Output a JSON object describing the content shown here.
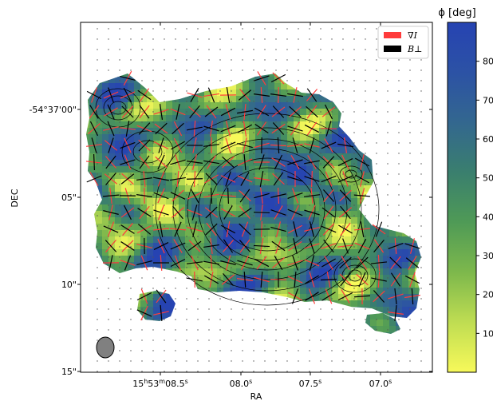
{
  "chart_data": {
    "type": "heatmap",
    "title": "",
    "xlabel": "RA",
    "ylabel": "DEC",
    "xticks": [
      "15h53m08.5s",
      "08.0s",
      "07.5s",
      "07.0s"
    ],
    "xtick_display": [
      {
        "base": "15",
        "s1": "h",
        "mid": "53",
        "s2": "m",
        "tail": "08.5",
        "s3": "s"
      },
      {
        "base": "",
        "s1": "",
        "mid": "",
        "s2": "",
        "tail": "08.0",
        "s3": "s"
      },
      {
        "base": "",
        "s1": "",
        "mid": "",
        "s2": "",
        "tail": "07.5",
        "s3": "s"
      },
      {
        "base": "",
        "s1": "",
        "mid": "",
        "s2": "",
        "tail": "07.0",
        "s3": "s"
      }
    ],
    "yticks": [
      "-54°37'00\"",
      "05\"",
      "10\"",
      "15\""
    ],
    "colorbar": {
      "label": "ϕ [deg]",
      "min": 0,
      "max": 90,
      "ticks": [
        10,
        20,
        30,
        40,
        50,
        60,
        70,
        80
      ],
      "colormap": [
        "#f7f95a",
        "#bfdd52",
        "#7db84c",
        "#4f9a56",
        "#3a7f6e",
        "#33678f",
        "#2c52a5",
        "#2643b2"
      ]
    },
    "legend": {
      "placement": "top-right",
      "entries": [
        {
          "label": "∇I",
          "color": "#ff3b3b"
        },
        {
          "label": "B⊥",
          "color": "#000000"
        }
      ]
    },
    "beam": {
      "color": "#808080"
    },
    "grid": false
  }
}
